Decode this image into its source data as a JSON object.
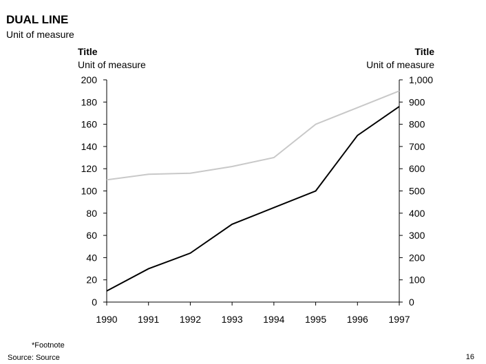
{
  "page": {
    "title": "DUAL LINE",
    "subtitle": "Unit of measure",
    "footnote": "*Footnote",
    "source": "Source: Source",
    "page_number": "16"
  },
  "chart_data": {
    "type": "line",
    "x": [
      "1990",
      "1991",
      "1992",
      "1993",
      "1994",
      "1995",
      "1996",
      "1997"
    ],
    "left_axis": {
      "title": "Title",
      "unit": "Unit of measure",
      "range": [
        0,
        200
      ],
      "ticks": [
        0,
        20,
        40,
        60,
        80,
        100,
        120,
        140,
        160,
        180,
        200
      ],
      "tick_labels": [
        "0",
        "20",
        "40",
        "60",
        "80",
        "100",
        "120",
        "140",
        "160",
        "180",
        "200"
      ]
    },
    "right_axis": {
      "title": "Title",
      "unit": "Unit of measure",
      "range": [
        0,
        1000
      ],
      "ticks": [
        0,
        100,
        200,
        300,
        400,
        500,
        600,
        700,
        800,
        900,
        1000
      ],
      "tick_labels": [
        "0",
        "100",
        "200",
        "300",
        "400",
        "500",
        "600",
        "700",
        "800",
        "900",
        "1,000"
      ]
    },
    "series": [
      {
        "axis": "left",
        "color": "#000000",
        "values": [
          10,
          30,
          44,
          70,
          85,
          100,
          150,
          176
        ]
      },
      {
        "axis": "right",
        "color": "#c8c8c8",
        "values": [
          550,
          575,
          580,
          610,
          650,
          800,
          875,
          950
        ]
      }
    ],
    "grid": false,
    "legend": "none"
  }
}
